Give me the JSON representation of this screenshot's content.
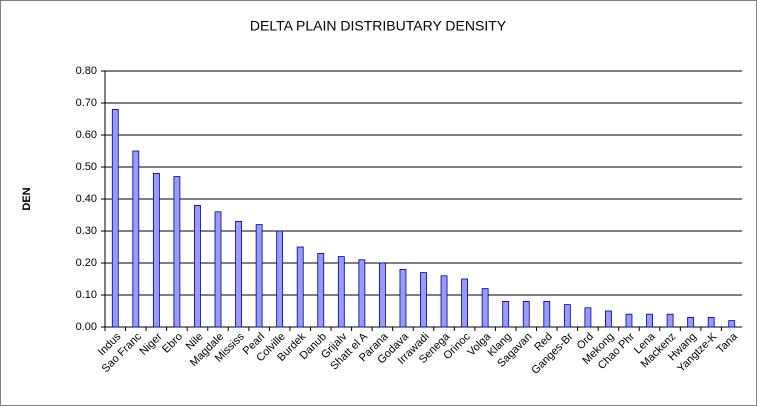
{
  "chart_data": {
    "type": "bar",
    "title": "DELTA PLAIN DISTRIBUTARY DENSITY",
    "y_label": "DEN",
    "categories": [
      "Indus",
      "Sao Franc",
      "Niger",
      "Ebro",
      "Nile",
      "Magdale",
      "Mississ",
      "Pearl",
      "Colville",
      "Burdek",
      "Danub",
      "Grijalv",
      "Shatt el A",
      "Parana",
      "Godava",
      "Irrawadi",
      "Senega",
      "Orinoc",
      "Volga",
      "Klang",
      "Sagavan",
      "Red",
      "Ganges-Br",
      "Ord",
      "Mekong",
      "Chao Phr",
      "Lena",
      "Mackenz",
      "Hwang",
      "Yangtze-K",
      "Tana"
    ],
    "values": [
      0.68,
      0.55,
      0.48,
      0.47,
      0.38,
      0.36,
      0.33,
      0.32,
      0.3,
      0.25,
      0.23,
      0.22,
      0.21,
      0.2,
      0.18,
      0.17,
      0.16,
      0.15,
      0.12,
      0.08,
      0.08,
      0.08,
      0.07,
      0.06,
      0.05,
      0.04,
      0.04,
      0.04,
      0.03,
      0.03,
      0.02
    ],
    "color": "#9999ff",
    "ylim": [
      0,
      0.8
    ],
    "yticks": [
      {
        "value": 0,
        "label": "0.00"
      },
      {
        "value": 0.1,
        "label": "0.10"
      },
      {
        "value": 0.2,
        "label": "0.20"
      },
      {
        "value": 0.3,
        "label": "0.30"
      },
      {
        "value": 0.4,
        "label": "0.40"
      },
      {
        "value": 0.5,
        "label": "0.50"
      },
      {
        "value": 0.6,
        "label": "0.60"
      },
      {
        "value": 0.7,
        "label": "0.70"
      },
      {
        "value": 0.8,
        "label": "0.80"
      }
    ],
    "grid": true
  }
}
